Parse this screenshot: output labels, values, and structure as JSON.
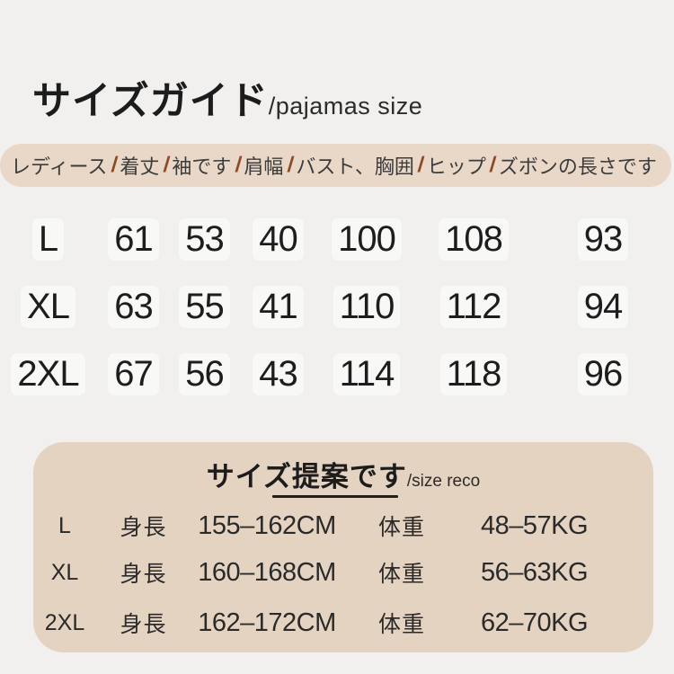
{
  "slash_separator": "/",
  "title": {
    "main": "サイズガイド",
    "sub": "/pajamas size"
  },
  "size_reco": {
    "title": "サイズ提案です",
    "subtitle": "/size reco",
    "rows": [
      {
        "size": "L",
        "height_label": "身長",
        "height": "155–162CM",
        "weight_label": "体重",
        "weight": "48–57KG"
      },
      {
        "size": "XL",
        "height_label": "身長",
        "height": "160–168CM",
        "weight_label": "体重",
        "weight": "56–63KG"
      },
      {
        "size": "2XL",
        "height_label": "身長",
        "height": "162–172CM",
        "weight_label": "体重",
        "weight": "62–70KG"
      }
    ]
  },
  "colors": {
    "page_background": "#f1f0ee",
    "header_pill_background": "#e9d8c7",
    "reco_box_background": "#e5d3c2",
    "slash_accent": "#8c4a26",
    "text": "#1d1d1d"
  },
  "chart_data": [
    {
      "type": "table",
      "title": "サイズガイド/pajamas size",
      "columns": [
        "レディース",
        "着丈",
        "袖です",
        "肩幅",
        "バスト、胸囲",
        "ヒップ",
        "ズボンの長さです"
      ],
      "rows": [
        [
          "L",
          61,
          53,
          40,
          100,
          108,
          93
        ],
        [
          "XL",
          63,
          55,
          41,
          110,
          112,
          94
        ],
        [
          "2XL",
          67,
          56,
          43,
          114,
          118,
          96
        ]
      ]
    },
    {
      "type": "table",
      "title": "サイズ提案です/size reco",
      "columns": [
        "サイズ",
        "身長",
        "体重"
      ],
      "rows": [
        [
          "L",
          "155–162CM",
          "48–57KG"
        ],
        [
          "XL",
          "160–168CM",
          "56–63KG"
        ],
        [
          "2XL",
          "162–172CM",
          "62–70KG"
        ]
      ]
    }
  ]
}
